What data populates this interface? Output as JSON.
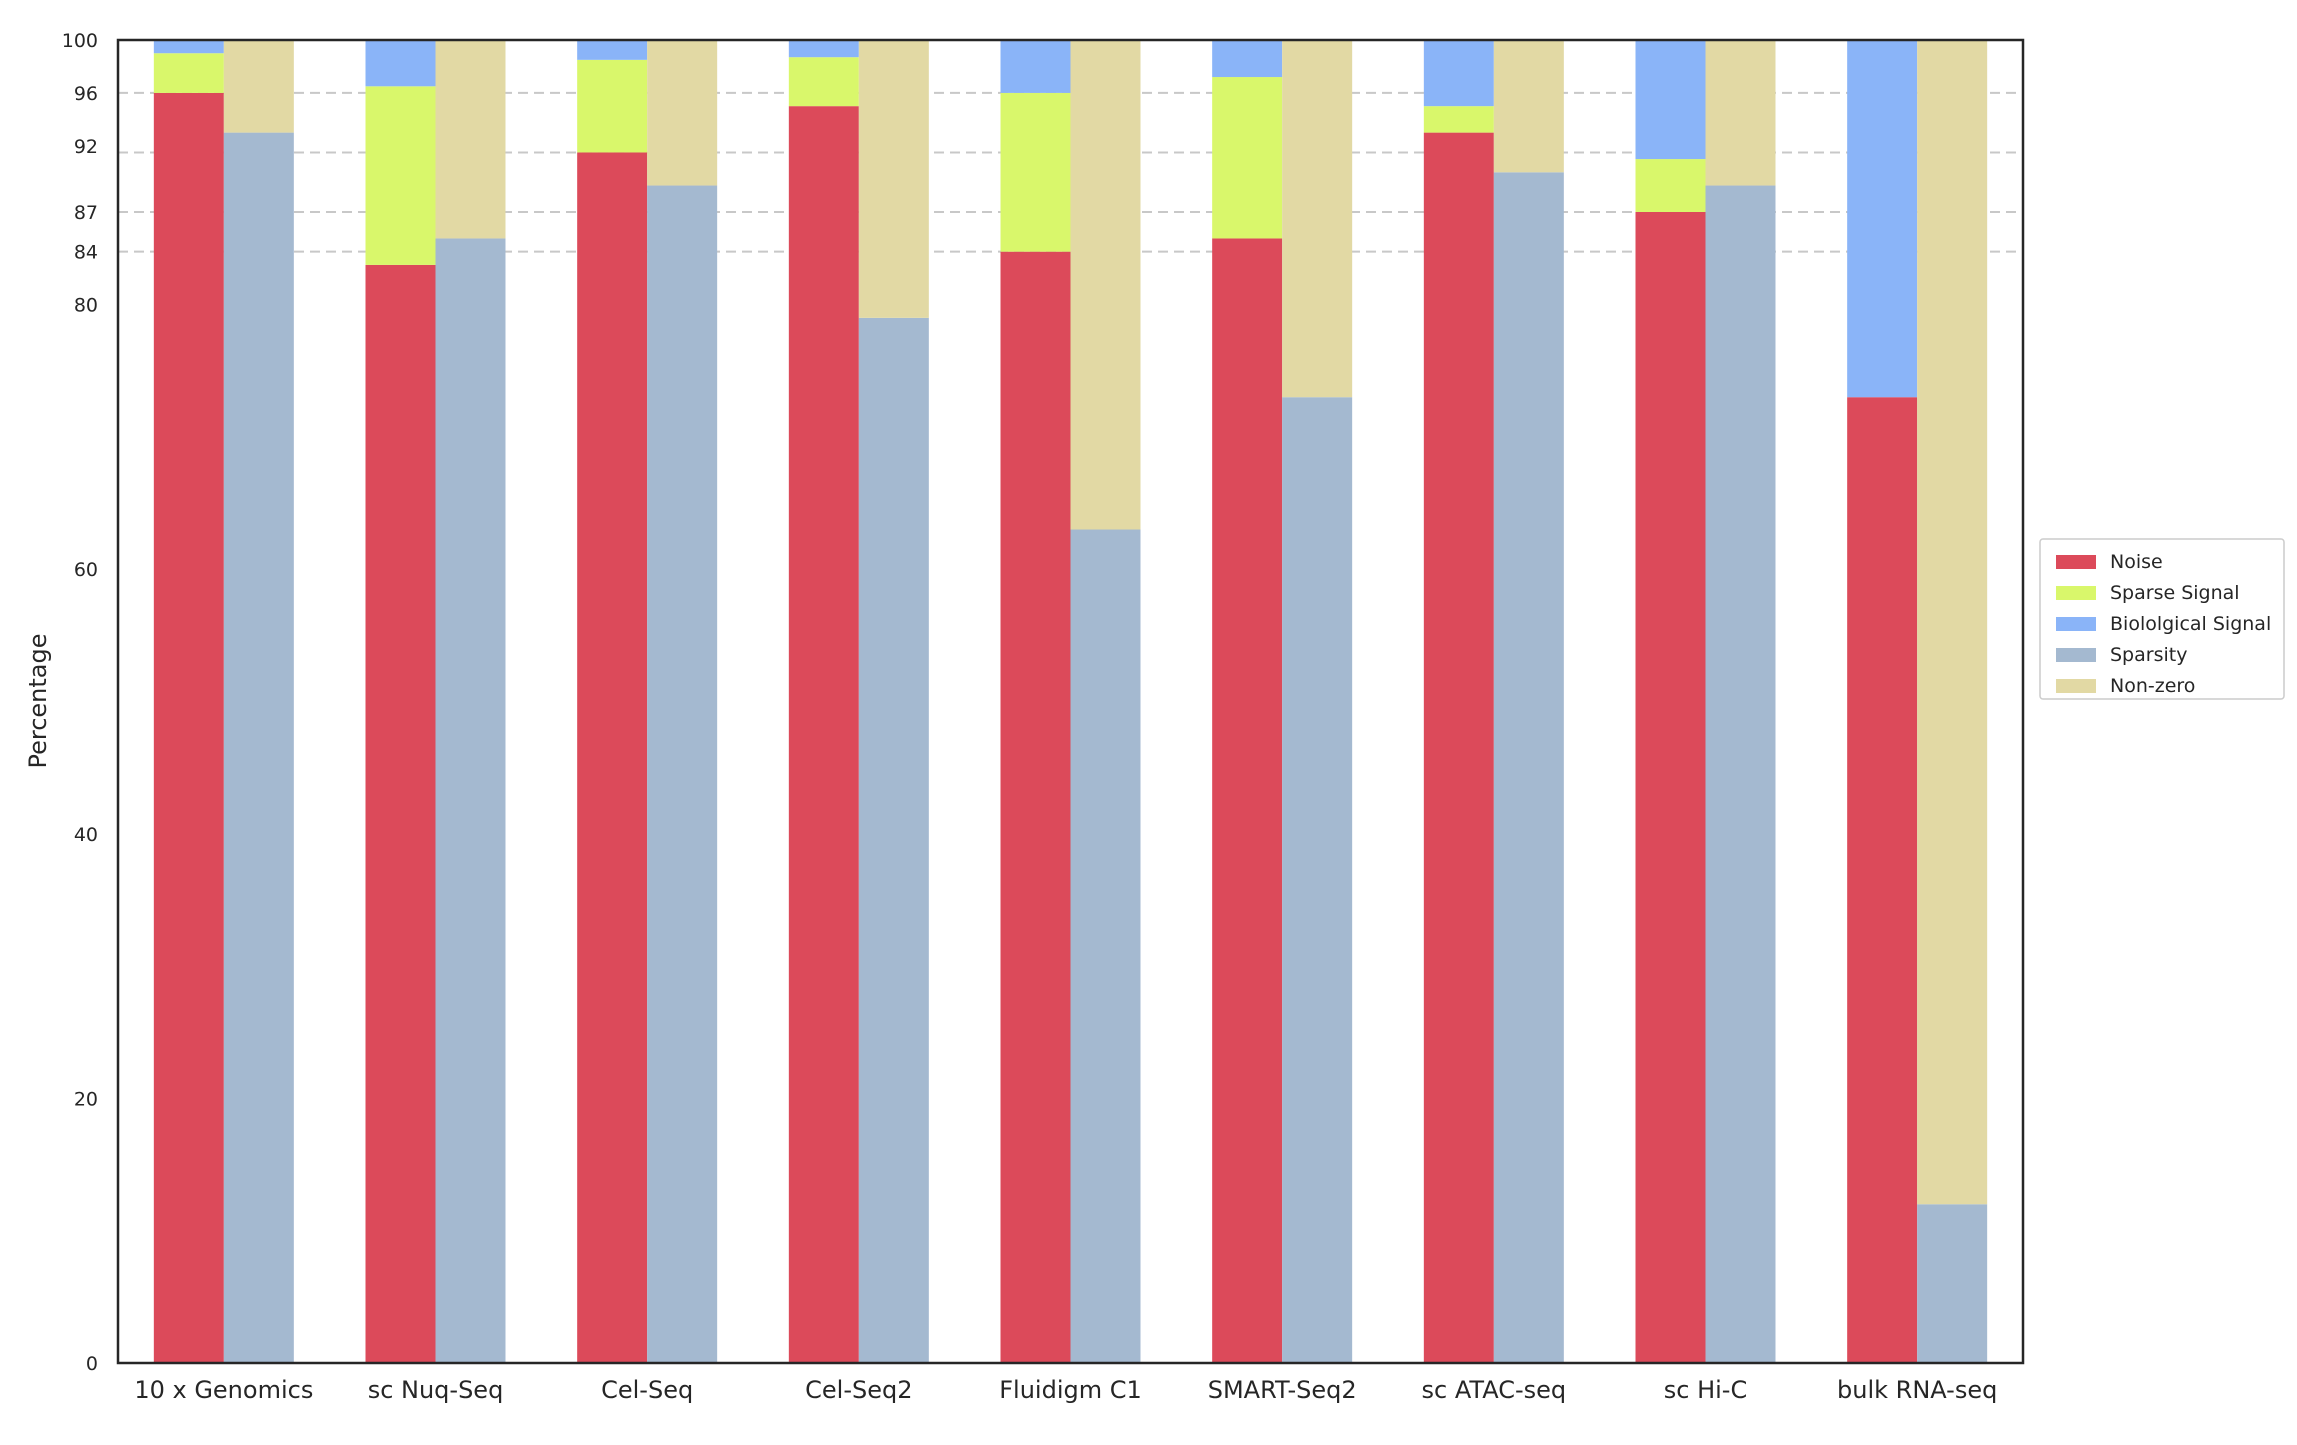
{
  "chart_data": {
    "type": "bar",
    "stacked": true,
    "grouped": true,
    "xlabel": "",
    "ylabel": "Percentage",
    "ylim": [
      0,
      100
    ],
    "yticks": [
      0,
      20,
      40,
      60,
      80,
      84,
      87,
      92,
      96,
      100
    ],
    "grid_hlines": [
      84,
      87,
      91.5,
      96
    ],
    "legend_position": "right",
    "categories": [
      "10 x Genomics",
      "sc Nuq-Seq",
      "Cel-Seq",
      "Cel-Seq2",
      "Fluidigm C1",
      "SMART-Seq2",
      "sc ATAC-seq",
      "sc Hi-C",
      "bulk RNA-seq"
    ],
    "series": [
      {
        "name": "Noise",
        "color": "#dc4a5a",
        "stack": "left",
        "values": [
          96,
          83,
          91.5,
          95,
          84,
          85,
          93,
          87,
          73
        ]
      },
      {
        "name": "Sparse Signal",
        "color": "#d9f76b",
        "stack": "left",
        "values": [
          3,
          13.5,
          7,
          3.7,
          12,
          12.2,
          2,
          4,
          0
        ]
      },
      {
        "name": "Biololgical Signal",
        "color": "#8ab4f8",
        "stack": "left",
        "values": [
          1,
          3.5,
          1.5,
          1.3,
          4,
          2.8,
          5,
          9,
          27
        ]
      },
      {
        "name": "Sparsity",
        "color": "#a4b9d0",
        "stack": "right",
        "values": [
          93,
          85,
          89,
          79,
          63,
          73,
          90,
          89,
          12
        ]
      },
      {
        "name": "Non-zero",
        "color": "#e2d9a4",
        "stack": "right",
        "values": [
          7,
          15,
          11,
          21,
          37,
          27,
          10,
          11,
          88
        ]
      }
    ]
  }
}
